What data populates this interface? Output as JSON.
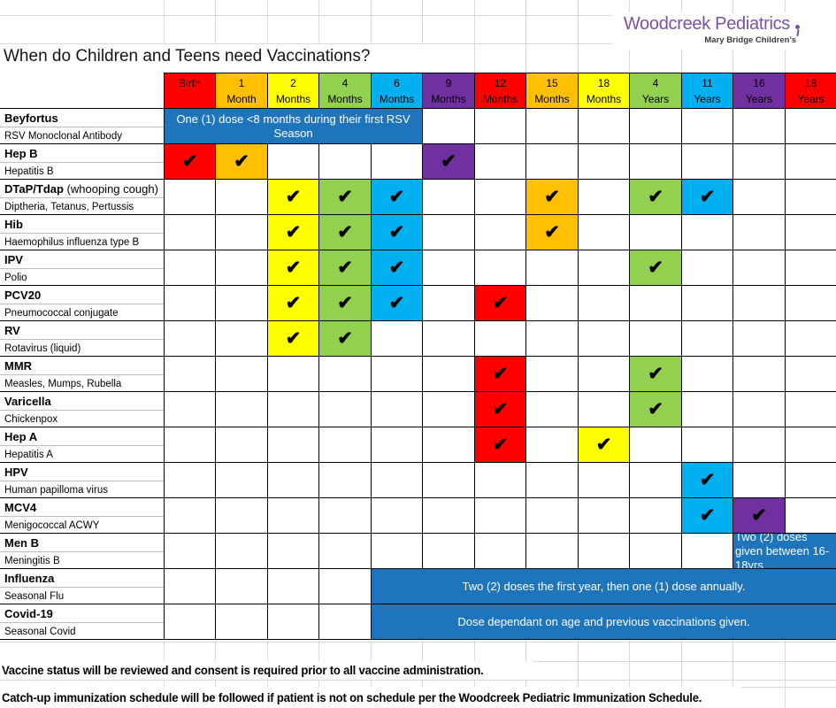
{
  "title": "When do Children and Teens need Vaccinations?",
  "logo": {
    "name": "Woodcreek Pediatrics",
    "tagline": "Mary Bridge Children's",
    "name_color": "#7b51a2",
    "tagline_color": "#3c3c3c"
  },
  "colors": {
    "red": "#ff0000",
    "orange": "#ffc000",
    "yellow": "#ffff00",
    "green": "#92d050",
    "cyan": "#00b0f0",
    "purple": "#7030a0",
    "banner_blue": "#1f75bc",
    "gridline": "#d9d9d9",
    "border": "#000000"
  },
  "check_glyph": "✔",
  "columns": [
    {
      "line1": "Birth",
      "line2": "",
      "color": "#ff0000"
    },
    {
      "line1": "1",
      "line2": "Month",
      "color": "#ffc000"
    },
    {
      "line1": "2",
      "line2": "Months",
      "color": "#ffff00"
    },
    {
      "line1": "4",
      "line2": "Months",
      "color": "#92d050"
    },
    {
      "line1": "6",
      "line2": "Months",
      "color": "#00b0f0"
    },
    {
      "line1": "9",
      "line2": "Months",
      "color": "#7030a0"
    },
    {
      "line1": "12",
      "line2": "Months",
      "color": "#ff0000"
    },
    {
      "line1": "15",
      "line2": "Months",
      "color": "#ffc000"
    },
    {
      "line1": "18",
      "line2": "Months",
      "color": "#ffff00"
    },
    {
      "line1": "4",
      "line2": "Years",
      "color": "#92d050"
    },
    {
      "line1": "11",
      "line2": "Years",
      "color": "#00b0f0"
    },
    {
      "line1": "16",
      "line2": "Years",
      "color": "#7030a0"
    },
    {
      "line1": "18",
      "line2": "Years",
      "color": "#ff0000"
    }
  ],
  "rows": [
    {
      "name": "Beyfortus",
      "suffix": "",
      "subtitle": "RSV Monoclonal Antibody",
      "checks": [],
      "banner": {
        "text": "One (1) dose <8 months during their first RSV Season",
        "start": 0,
        "end": 4,
        "align": "center"
      }
    },
    {
      "name": "Hep B",
      "suffix": "",
      "subtitle": "Hepatitis B",
      "checks": [
        0,
        1,
        5
      ]
    },
    {
      "name": "DTaP/Tdap",
      "suffix": " (whooping cough)",
      "subtitle": "Diptheria, Tetanus, Pertussis",
      "checks": [
        2,
        3,
        4,
        7,
        9,
        10
      ]
    },
    {
      "name": "Hib",
      "suffix": "",
      "subtitle": "Haemophilus influenza type B",
      "checks": [
        2,
        3,
        4,
        7
      ]
    },
    {
      "name": "IPV",
      "suffix": "",
      "subtitle": "Polio",
      "checks": [
        2,
        3,
        4,
        9
      ]
    },
    {
      "name": "PCV20",
      "suffix": "",
      "subtitle": "Pneumococcal conjugate",
      "checks": [
        2,
        3,
        4,
        6
      ]
    },
    {
      "name": "RV",
      "suffix": "",
      "subtitle": "Rotavirus (liquid)",
      "checks": [
        2,
        3
      ]
    },
    {
      "name": "MMR",
      "suffix": "",
      "subtitle": "Measles, Mumps, Rubella",
      "checks": [
        6,
        9
      ]
    },
    {
      "name": "Varicella",
      "suffix": "",
      "subtitle": "Chickenpox",
      "checks": [
        6,
        9
      ]
    },
    {
      "name": "Hep A",
      "suffix": "",
      "subtitle": "Hepatitis A",
      "checks": [
        6,
        8
      ]
    },
    {
      "name": "HPV",
      "suffix": "",
      "subtitle": "Human papilloma virus",
      "checks": [
        10
      ]
    },
    {
      "name": "MCV4",
      "suffix": "",
      "subtitle": "Menigococcal ACWY",
      "checks": [
        10,
        11
      ]
    },
    {
      "name": "Men B",
      "suffix": "",
      "subtitle": "Meningitis B",
      "checks": [],
      "banner": {
        "text": "Two (2) doses given between 16-18yrs",
        "start": 11,
        "end": 12,
        "align": "left"
      }
    },
    {
      "name": "Influenza",
      "suffix": "",
      "subtitle": "Seasonal Flu",
      "checks": [],
      "banner": {
        "text": "Two (2) doses the first year, then one (1) dose annually.",
        "start": 4,
        "end": 12,
        "align": "center"
      }
    },
    {
      "name": "Covid-19",
      "suffix": "",
      "subtitle": "Seasonal Covid",
      "checks": [],
      "banner": {
        "text": "Dose dependant on age and previous vaccinations given.",
        "start": 4,
        "end": 12,
        "align": "center"
      }
    }
  ],
  "notes": [
    "Vaccine status will be reviewed and consent is required prior to all vaccine administration.",
    "Catch-up immunization schedule will be followed if patient is not on schedule per the Woodcreek Pediatric Immunization Schedule."
  ]
}
